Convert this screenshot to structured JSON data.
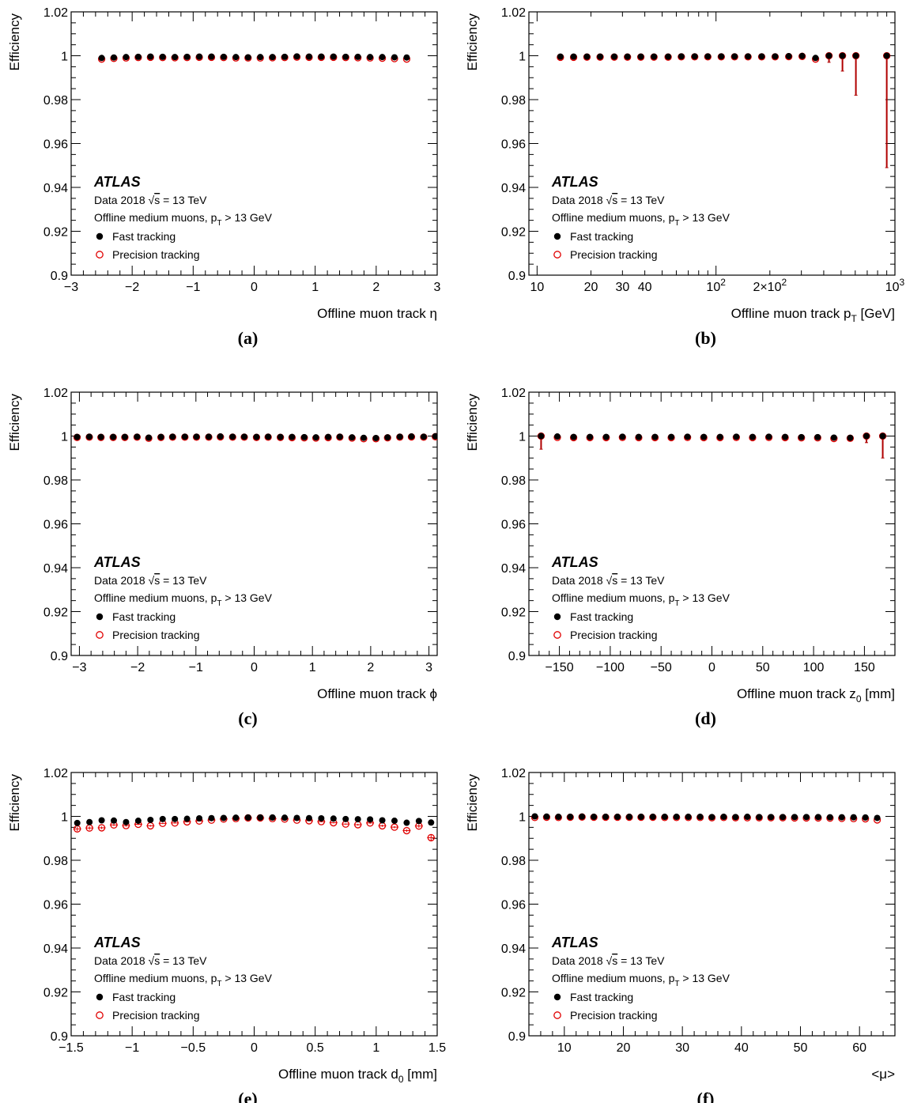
{
  "common": {
    "ylabel": "Efficiency",
    "yticks": [
      "0.9",
      "0.92",
      "0.94",
      "0.96",
      "0.98",
      "1",
      "1.02"
    ],
    "ylim": [
      0.9,
      1.02
    ],
    "atlas": "ATLAS",
    "data_line": "Data 2018",
    "sqrt_s": "s",
    "energy": " = 13 TeV",
    "offline_line": "Offline medium muons, p",
    "offline_sub": "T",
    "offline_cut": " > 13 GeV",
    "legend_fast": "Fast tracking",
    "legend_precision": "Precision tracking",
    "colors": {
      "fast": "#000000",
      "precision": "#e00000"
    }
  },
  "chart_data": [
    {
      "id": "a",
      "panel_label": "(a)",
      "type": "scatter",
      "xlabel": "Offline muon track η",
      "xlim": [
        -3,
        3
      ],
      "xticks": [
        {
          "v": -3,
          "t": "−3"
        },
        {
          "v": -2,
          "t": "−2"
        },
        {
          "v": -1,
          "t": "−1"
        },
        {
          "v": 0,
          "t": "0"
        },
        {
          "v": 1,
          "t": "1"
        },
        {
          "v": 2,
          "t": "2"
        },
        {
          "v": 3,
          "t": "3"
        }
      ],
      "x": [
        -2.5,
        -2.3,
        -2.1,
        -1.9,
        -1.7,
        -1.5,
        -1.3,
        -1.1,
        -0.9,
        -0.7,
        -0.5,
        -0.3,
        -0.1,
        0.1,
        0.3,
        0.5,
        0.7,
        0.9,
        1.1,
        1.3,
        1.5,
        1.7,
        1.9,
        2.1,
        2.3,
        2.5
      ],
      "series": [
        {
          "name": "Fast tracking",
          "values": [
            0.999,
            0.9992,
            0.9994,
            0.9995,
            0.9996,
            0.9995,
            0.9994,
            0.9995,
            0.9996,
            0.9996,
            0.9995,
            0.9994,
            0.9993,
            0.9994,
            0.9994,
            0.9995,
            0.9997,
            0.9996,
            0.9996,
            0.9996,
            0.9995,
            0.9995,
            0.9994,
            0.9994,
            0.9993,
            0.9992
          ]
        },
        {
          "name": "Precision tracking",
          "values": [
            0.9985,
            0.9988,
            0.999,
            0.9992,
            0.9993,
            0.9992,
            0.9991,
            0.9992,
            0.9993,
            0.9993,
            0.9992,
            0.999,
            0.999,
            0.999,
            0.9991,
            0.9992,
            0.9994,
            0.9993,
            0.9993,
            0.9993,
            0.9992,
            0.9991,
            0.999,
            0.9989,
            0.9987,
            0.9985
          ]
        }
      ]
    },
    {
      "id": "b",
      "panel_label": "(b)",
      "type": "scatter",
      "xscale": "log",
      "xlabel": "Offline muon track p",
      "xlabel_sub": "T",
      "xlabel_unit": " [GeV]",
      "xlim": [
        9,
        1000
      ],
      "xticks": [
        {
          "v": 10,
          "t": "10"
        },
        {
          "v": 20,
          "t": "20"
        },
        {
          "v": 30,
          "t": "30"
        },
        {
          "v": 40,
          "t": "40"
        },
        {
          "v": 100,
          "t": "10",
          "sup": "2"
        },
        {
          "v": 200,
          "t": "2×10",
          "sup": "2"
        },
        {
          "v": 1000,
          "t": "10",
          "sup": "3"
        }
      ],
      "x": [
        13.5,
        16,
        19,
        22.5,
        27,
        32,
        38,
        45,
        54,
        64,
        76,
        90,
        107,
        127,
        151,
        180,
        214,
        255,
        303,
        360,
        428,
        509,
        605,
        900
      ],
      "series": [
        {
          "name": "Fast tracking",
          "values": [
            0.9996,
            0.9996,
            0.9996,
            0.9996,
            0.9996,
            0.9996,
            0.9996,
            0.9996,
            0.9996,
            0.9997,
            0.9997,
            0.9997,
            0.9997,
            0.9997,
            0.9997,
            0.9997,
            0.9997,
            0.9998,
            0.9999,
            0.999,
            1.0,
            1.0,
            1.0,
            1.0
          ]
        },
        {
          "name": "Precision tracking",
          "values": [
            0.9993,
            0.9993,
            0.9994,
            0.9994,
            0.9994,
            0.9994,
            0.9994,
            0.9994,
            0.9994,
            0.9995,
            0.9995,
            0.9995,
            0.9995,
            0.9995,
            0.9995,
            0.9995,
            0.9995,
            0.9996,
            0.9997,
            0.9985,
            1.0,
            1.0,
            1.0,
            1.0
          ]
        }
      ],
      "err_low": [
        0,
        0,
        0,
        0,
        0,
        0,
        0,
        0,
        0,
        0,
        0,
        0,
        0,
        0,
        0,
        0,
        0,
        0,
        0,
        0,
        0.003,
        0.007,
        0.018,
        0.051
      ]
    },
    {
      "id": "c",
      "panel_label": "(c)",
      "type": "scatter",
      "xlabel": "Offline muon track ϕ",
      "xlim": [
        -3.14159,
        3.14159
      ],
      "xticks": [
        {
          "v": -3,
          "t": "−3"
        },
        {
          "v": -2,
          "t": "−2"
        },
        {
          "v": -1,
          "t": "−1"
        },
        {
          "v": 0,
          "t": "0"
        },
        {
          "v": 1,
          "t": "1"
        },
        {
          "v": 2,
          "t": "2"
        },
        {
          "v": 3,
          "t": "3"
        }
      ],
      "x": [
        -3.04,
        -2.83,
        -2.63,
        -2.42,
        -2.22,
        -2.01,
        -1.81,
        -1.6,
        -1.4,
        -1.19,
        -0.99,
        -0.78,
        -0.58,
        -0.37,
        -0.17,
        0.04,
        0.24,
        0.45,
        0.65,
        0.86,
        1.06,
        1.27,
        1.47,
        1.68,
        1.88,
        2.09,
        2.29,
        2.5,
        2.7,
        2.91,
        3.11
      ],
      "series": [
        {
          "name": "Fast tracking",
          "values": [
            0.9996,
            0.9997,
            0.9996,
            0.9996,
            0.9996,
            0.9997,
            0.9993,
            0.9996,
            0.9997,
            0.9997,
            0.9997,
            0.9997,
            0.9998,
            0.9997,
            0.9997,
            0.9996,
            0.9997,
            0.9996,
            0.9996,
            0.9995,
            0.9994,
            0.9996,
            0.9997,
            0.9994,
            0.9992,
            0.9991,
            0.9994,
            0.9997,
            0.9998,
            0.9997,
            0.9999
          ]
        },
        {
          "name": "Precision tracking",
          "values": [
            0.9994,
            0.9995,
            0.9994,
            0.9994,
            0.9994,
            0.9995,
            0.999,
            0.9994,
            0.9995,
            0.9995,
            0.9995,
            0.9995,
            0.9996,
            0.9995,
            0.9995,
            0.9994,
            0.9995,
            0.9994,
            0.9993,
            0.9992,
            0.9991,
            0.9993,
            0.9995,
            0.9991,
            0.9988,
            0.9988,
            0.9992,
            0.9995,
            0.9996,
            0.9995,
            0.9997
          ]
        }
      ]
    },
    {
      "id": "d",
      "panel_label": "(d)",
      "type": "scatter",
      "xlabel": "Offline muon track z",
      "xlabel_sub": "0",
      "xlabel_unit": " [mm]",
      "xlim": [
        -180,
        180
      ],
      "xticks": [
        {
          "v": -150,
          "t": "−150"
        },
        {
          "v": -100,
          "t": "−100"
        },
        {
          "v": -50,
          "t": "−50"
        },
        {
          "v": 0,
          "t": "0"
        },
        {
          "v": 50,
          "t": "50"
        },
        {
          "v": 100,
          "t": "100"
        },
        {
          "v": 150,
          "t": "150"
        }
      ],
      "x": [
        -168,
        -152,
        -136,
        -120,
        -104,
        -88,
        -72,
        -56,
        -40,
        -24,
        -8,
        8,
        24,
        40,
        56,
        72,
        88,
        104,
        120,
        136,
        152,
        168
      ],
      "series": [
        {
          "name": "Fast tracking",
          "values": [
            1.0,
            0.9998,
            0.9996,
            0.9996,
            0.9996,
            0.9997,
            0.9996,
            0.9996,
            0.9996,
            0.9997,
            0.9996,
            0.9996,
            0.9997,
            0.9996,
            0.9997,
            0.9996,
            0.9995,
            0.9995,
            0.9993,
            0.9992,
            1.0,
            1.0
          ]
        },
        {
          "name": "Precision tracking",
          "values": [
            1.0,
            0.9994,
            0.9993,
            0.9993,
            0.9993,
            0.9994,
            0.9993,
            0.9993,
            0.9993,
            0.9994,
            0.9993,
            0.9993,
            0.9994,
            0.9993,
            0.9994,
            0.9993,
            0.9992,
            0.9992,
            0.9989,
            0.999,
            1.0,
            1.0
          ]
        }
      ],
      "err_low": [
        0.006,
        0,
        0,
        0,
        0,
        0,
        0,
        0,
        0,
        0,
        0,
        0,
        0,
        0,
        0,
        0,
        0,
        0,
        0,
        0,
        0.003,
        0.01
      ]
    },
    {
      "id": "e",
      "panel_label": "(e)",
      "type": "scatter",
      "xlabel": "Offline muon track d",
      "xlabel_sub": "0",
      "xlabel_unit": " [mm]",
      "xlim": [
        -1.5,
        1.5
      ],
      "xticks": [
        {
          "v": -1.5,
          "t": "−1.5"
        },
        {
          "v": -1,
          "t": "−1"
        },
        {
          "v": -0.5,
          "t": "−0.5"
        },
        {
          "v": 0,
          "t": "0"
        },
        {
          "v": 0.5,
          "t": "0.5"
        },
        {
          "v": 1,
          "t": "1"
        },
        {
          "v": 1.5,
          "t": "1.5"
        }
      ],
      "x": [
        -1.45,
        -1.35,
        -1.25,
        -1.15,
        -1.05,
        -0.95,
        -0.85,
        -0.75,
        -0.65,
        -0.55,
        -0.45,
        -0.35,
        -0.25,
        -0.15,
        -0.05,
        0.05,
        0.15,
        0.25,
        0.35,
        0.45,
        0.55,
        0.65,
        0.75,
        0.85,
        0.95,
        1.05,
        1.15,
        1.25,
        1.35,
        1.45
      ],
      "series": [
        {
          "name": "Fast tracking",
          "values": [
            0.997,
            0.9974,
            0.9982,
            0.9981,
            0.9974,
            0.998,
            0.9984,
            0.9988,
            0.9988,
            0.9989,
            0.9991,
            0.9992,
            0.9993,
            0.9994,
            0.9995,
            0.9995,
            0.9995,
            0.9994,
            0.9993,
            0.9992,
            0.9991,
            0.999,
            0.9988,
            0.9987,
            0.9986,
            0.9982,
            0.998,
            0.9971,
            0.9979,
            0.9972
          ]
        },
        {
          "name": "Precision tracking",
          "values": [
            0.9943,
            0.9947,
            0.9948,
            0.9961,
            0.9958,
            0.9964,
            0.9957,
            0.9968,
            0.997,
            0.9975,
            0.9979,
            0.9983,
            0.9988,
            0.999,
            0.9993,
            0.9993,
            0.999,
            0.9988,
            0.9983,
            0.998,
            0.9976,
            0.9971,
            0.9965,
            0.9962,
            0.997,
            0.9957,
            0.9951,
            0.9935,
            0.9956,
            0.9903
          ]
        }
      ],
      "err_prec": [
        0.001,
        0.0008,
        0.0006,
        0.0005,
        0.0005,
        0.0004,
        0.0004,
        0.0003,
        0.0003,
        0.0003,
        0.0002,
        0.0002,
        0.0002,
        0.0001,
        0.0001,
        0.0001,
        0.0001,
        0.0002,
        0.0002,
        0.0002,
        0.0003,
        0.0003,
        0.0003,
        0.0004,
        0.0004,
        0.0005,
        0.0005,
        0.0006,
        0.0008,
        0.0014
      ]
    },
    {
      "id": "f",
      "panel_label": "(f)",
      "type": "scatter",
      "xlabel": "<μ>",
      "xlim": [
        4,
        66
      ],
      "xticks": [
        {
          "v": 10,
          "t": "10"
        },
        {
          "v": 20,
          "t": "20"
        },
        {
          "v": 30,
          "t": "30"
        },
        {
          "v": 40,
          "t": "40"
        },
        {
          "v": 50,
          "t": "50"
        },
        {
          "v": 60,
          "t": "60"
        }
      ],
      "x": [
        5,
        7,
        9,
        11,
        13,
        15,
        17,
        19,
        21,
        23,
        25,
        27,
        29,
        31,
        33,
        35,
        37,
        39,
        41,
        43,
        45,
        47,
        49,
        51,
        53,
        55,
        57,
        59,
        61,
        63
      ],
      "series": [
        {
          "name": "Fast tracking",
          "values": [
            1.0,
            0.9999,
            0.9998,
            0.9998,
            0.9999,
            0.9998,
            0.9998,
            0.9998,
            0.9998,
            0.9998,
            0.9998,
            0.9998,
            0.9998,
            0.9998,
            0.9998,
            0.9997,
            0.9998,
            0.9997,
            0.9998,
            0.9997,
            0.9997,
            0.9997,
            0.9997,
            0.9997,
            0.9997,
            0.9996,
            0.9996,
            0.9996,
            0.9995,
            0.9993
          ]
        },
        {
          "name": "Precision tracking",
          "values": [
            0.9995,
            0.9996,
            0.9995,
            0.9996,
            0.9997,
            0.9996,
            0.9996,
            0.9996,
            0.9996,
            0.9996,
            0.9996,
            0.9995,
            0.9995,
            0.9995,
            0.9995,
            0.9994,
            0.9995,
            0.9994,
            0.9994,
            0.9994,
            0.9994,
            0.9994,
            0.9993,
            0.9993,
            0.9993,
            0.9992,
            0.9991,
            0.999,
            0.9989,
            0.9984
          ]
        }
      ]
    }
  ]
}
